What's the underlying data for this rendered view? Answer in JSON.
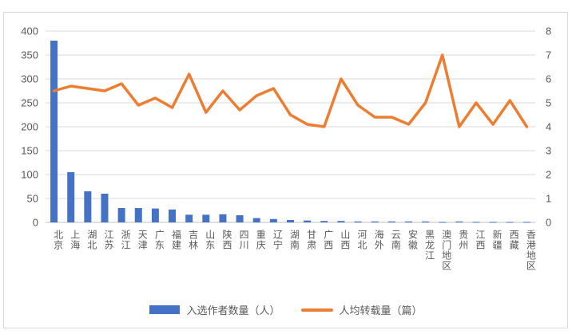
{
  "chart_data": {
    "type": "bar",
    "subtype": "combo-bar-line-dual-axis",
    "title": "",
    "categories": [
      "北京",
      "上海",
      "湖北",
      "江苏",
      "浙江",
      "天津",
      "广东",
      "福建",
      "吉林",
      "山东",
      "陕西",
      "四川",
      "重庆",
      "辽宁",
      "湖南",
      "甘肃",
      "广西",
      "山西",
      "河北",
      "海外",
      "云南",
      "安徽",
      "黑龙江",
      "澳门地区",
      "贵州",
      "江西",
      "新疆",
      "西藏",
      "香港地区"
    ],
    "series": [
      {
        "name": "入选作者数量（人）",
        "type": "bar",
        "axis": "left",
        "color": "#4472C4",
        "values": [
          380,
          105,
          65,
          60,
          30,
          30,
          29,
          27,
          16,
          16,
          17,
          15,
          9,
          7,
          5,
          4,
          3,
          3,
          2,
          2,
          2,
          2,
          2,
          1,
          2,
          1,
          1,
          1,
          1
        ]
      },
      {
        "name": "人均转载量（篇）",
        "type": "line",
        "axis": "right",
        "color": "#ED7D31",
        "values": [
          5.5,
          5.7,
          5.6,
          5.5,
          5.8,
          4.9,
          5.2,
          4.8,
          6.2,
          4.6,
          5.5,
          4.7,
          5.3,
          5.6,
          4.5,
          4.1,
          4.0,
          6.0,
          4.9,
          4.4,
          4.4,
          4.1,
          5.0,
          7.0,
          4.0,
          5.0,
          4.1,
          5.1,
          4.0
        ]
      }
    ],
    "left_axis": {
      "min": 0,
      "max": 400,
      "step": 50,
      "ticks": [
        0,
        50,
        100,
        150,
        200,
        250,
        300,
        350,
        400
      ]
    },
    "right_axis": {
      "min": 0,
      "max": 8,
      "step": 1,
      "ticks": [
        0,
        1,
        2,
        3,
        4,
        5,
        6,
        7,
        8
      ]
    },
    "grid": true,
    "legend_position": "bottom",
    "colors": {
      "bar": "#4472C4",
      "line": "#ED7D31",
      "gridline": "#D9D9D9",
      "axis_line": "#BFBFBF",
      "text": "#595959",
      "border": "#D9D9D9"
    }
  }
}
